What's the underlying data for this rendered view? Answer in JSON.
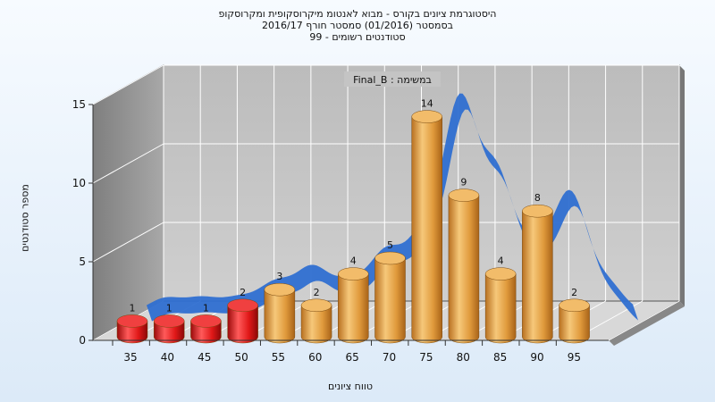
{
  "chart_data": {
    "type": "bar",
    "title_lines": [
      "היסטוגרמת ציונים בקורס - מבוא לאנטומ מיקרוסקופית ומקרוסקופ",
      "בסמסטר  (01/2016)  סמסטר חורף 2016/17",
      "סטודנטים רשומים - 99"
    ],
    "subtitle": "במשימה : Final_B",
    "xlabel": "טווח ציונים",
    "ylabel": "מספר סטודנטים",
    "categories": [
      "35",
      "40",
      "45",
      "50",
      "55",
      "60",
      "65",
      "70",
      "75",
      "80",
      "85",
      "90",
      "95"
    ],
    "values": [
      1,
      1,
      1,
      2,
      3,
      2,
      4,
      5,
      14,
      9,
      4,
      8,
      2
    ],
    "bar_colors": [
      "#e01818",
      "#e01818",
      "#e01818",
      "#e01818",
      "#e8a040",
      "#e8a040",
      "#e8a040",
      "#e8a040",
      "#e8a040",
      "#e8a040",
      "#e8a040",
      "#e8a040",
      "#e8a040"
    ],
    "curve_color": "#2f6fd1",
    "yticks": [
      "0",
      "5",
      "10",
      "15"
    ],
    "ylim": [
      0,
      15
    ],
    "grid": true,
    "legend": "none"
  }
}
